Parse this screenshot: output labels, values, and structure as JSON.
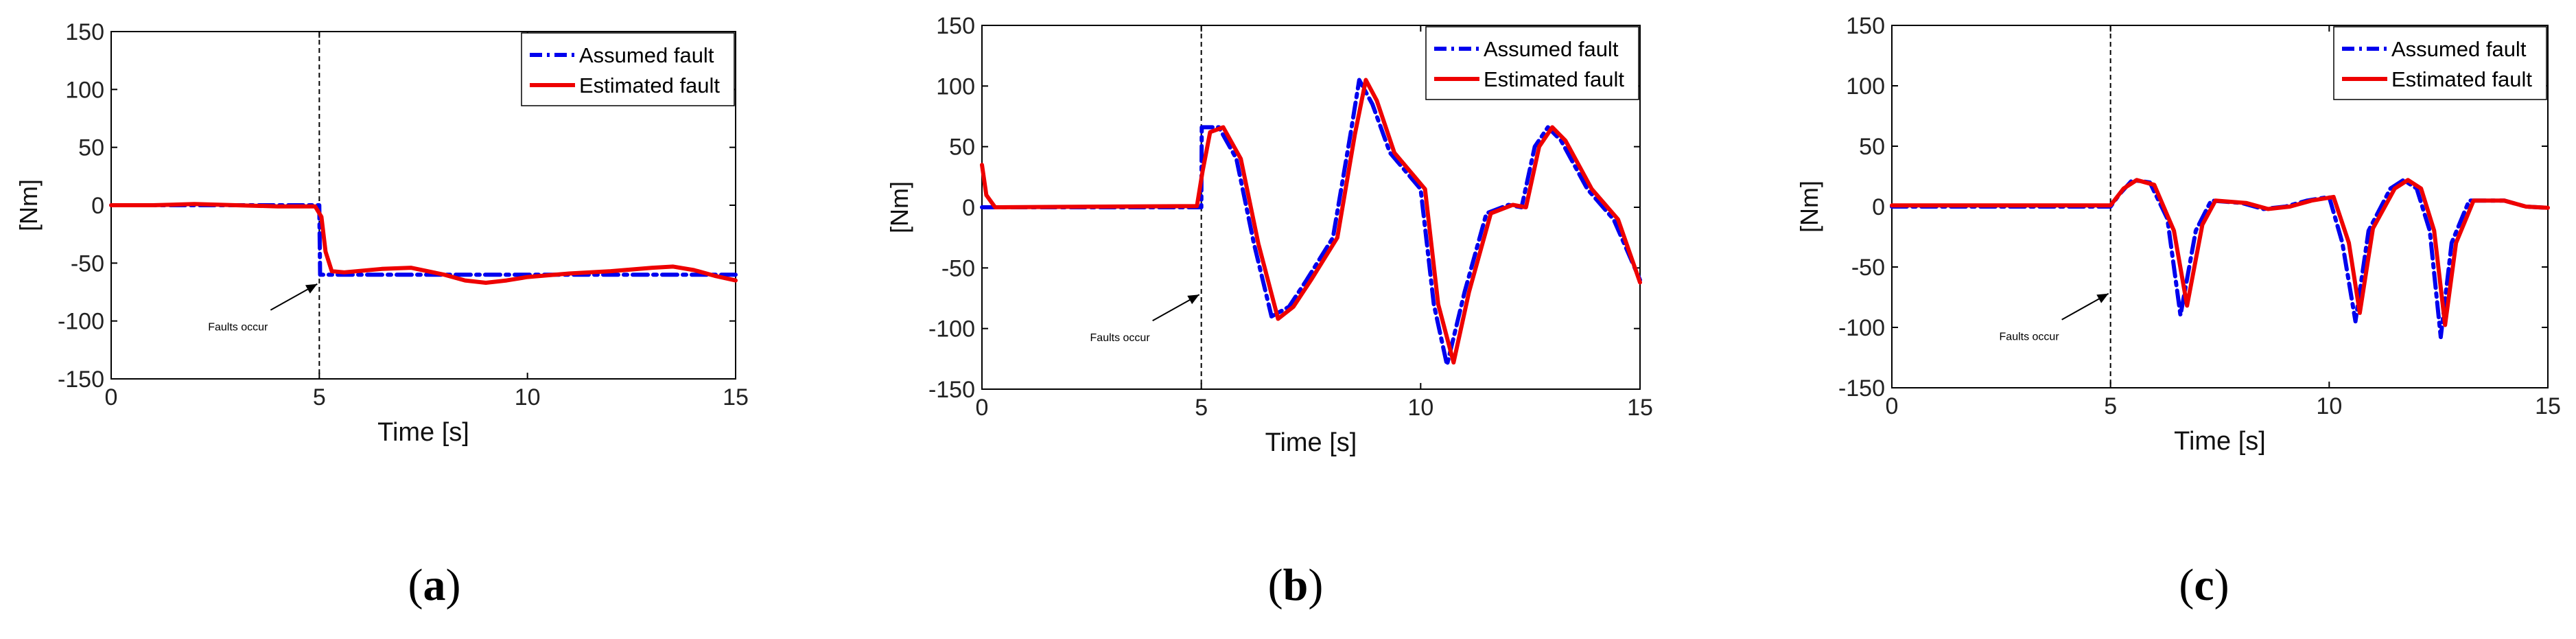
{
  "figure": {
    "panels": [
      {
        "id": "a",
        "caption_open": "(",
        "caption_letter": "a",
        "caption_close": ")",
        "chart_data": {
          "type": "line",
          "title": "",
          "xlabel": "Time [s]",
          "ylabel": "[Nm]",
          "xlim": [
            0,
            15
          ],
          "ylim": [
            -150,
            150
          ],
          "xticks": [
            0,
            5,
            10,
            15
          ],
          "yticks": [
            150,
            100,
            50,
            0,
            -50,
            -100,
            -150
          ],
          "grid": false,
          "legend_position": "top-right",
          "fault_time": 5,
          "annotation": {
            "text": "Faults occur",
            "arrow_to": [
              5,
              -68
            ],
            "text_at": [
              3.2,
              -93
            ]
          },
          "series": [
            {
              "name": "Assumed fault",
              "style": "dash-dot",
              "color": "#0000ee",
              "points": [
                [
                  0,
                  0
                ],
                [
                  5,
                  0
                ],
                [
                  5.02,
                  -60
                ],
                [
                  15,
                  -60
                ]
              ]
            },
            {
              "name": "Estimated fault",
              "style": "solid",
              "color": "#ee0000",
              "points": [
                [
                  0,
                  0
                ],
                [
                  1,
                  0
                ],
                [
                  2,
                  1
                ],
                [
                  3,
                  0
                ],
                [
                  4,
                  -1
                ],
                [
                  4.9,
                  -1
                ],
                [
                  5.05,
                  -10
                ],
                [
                  5.15,
                  -40
                ],
                [
                  5.3,
                  -57
                ],
                [
                  5.6,
                  -58
                ],
                [
                  6.5,
                  -55
                ],
                [
                  7.2,
                  -54
                ],
                [
                  8,
                  -60
                ],
                [
                  8.5,
                  -65
                ],
                [
                  9,
                  -67
                ],
                [
                  9.5,
                  -65
                ],
                [
                  10,
                  -62
                ],
                [
                  11,
                  -59
                ],
                [
                  12,
                  -57
                ],
                [
                  13,
                  -54
                ],
                [
                  13.5,
                  -53
                ],
                [
                  14,
                  -56
                ],
                [
                  14.5,
                  -61
                ],
                [
                  15,
                  -65
                ]
              ]
            }
          ]
        }
      },
      {
        "id": "b",
        "caption_open": "(",
        "caption_letter": "b",
        "caption_close": ")",
        "chart_data": {
          "type": "line",
          "title": "",
          "xlabel": "Time [s]",
          "ylabel": "[Nm]",
          "xlim": [
            0,
            15
          ],
          "ylim": [
            -150,
            150
          ],
          "xticks": [
            0,
            5,
            10,
            15
          ],
          "yticks": [
            150,
            100,
            50,
            0,
            -50,
            -100,
            -150
          ],
          "grid": false,
          "legend_position": "top-right",
          "fault_time": 5,
          "annotation": {
            "text": "Faults occur",
            "arrow_to": [
              5,
              -72
            ],
            "text_at": [
              3.2,
              -95
            ]
          },
          "series": [
            {
              "name": "Assumed fault",
              "style": "dash-dot",
              "color": "#0000ee",
              "points": [
                [
                  0,
                  0
                ],
                [
                  5,
                  0
                ],
                [
                  5.01,
                  66
                ],
                [
                  5.4,
                  66
                ],
                [
                  5.8,
                  40
                ],
                [
                  6.2,
                  -30
                ],
                [
                  6.6,
                  -90
                ],
                [
                  7,
                  -82
                ],
                [
                  7.4,
                  -60
                ],
                [
                  8,
                  -25
                ],
                [
                  8.4,
                  60
                ],
                [
                  8.6,
                  105
                ],
                [
                  8.9,
                  85
                ],
                [
                  9.3,
                  45
                ],
                [
                  10,
                  15
                ],
                [
                  10.3,
                  -80
                ],
                [
                  10.6,
                  -130
                ],
                [
                  11,
                  -70
                ],
                [
                  11.5,
                  -5
                ],
                [
                  12,
                  2
                ],
                [
                  12.3,
                  0
                ],
                [
                  12.6,
                  50
                ],
                [
                  12.9,
                  66
                ],
                [
                  13.2,
                  55
                ],
                [
                  13.8,
                  15
                ],
                [
                  14.4,
                  -10
                ],
                [
                  15,
                  -60
                ]
              ]
            },
            {
              "name": "Estimated fault",
              "style": "solid",
              "color": "#ee0000",
              "points": [
                [
                  0,
                  35
                ],
                [
                  0.1,
                  10
                ],
                [
                  0.3,
                  0
                ],
                [
                  4.9,
                  1
                ],
                [
                  5.03,
                  30
                ],
                [
                  5.2,
                  62
                ],
                [
                  5.5,
                  66
                ],
                [
                  5.9,
                  40
                ],
                [
                  6.3,
                  -30
                ],
                [
                  6.75,
                  -92
                ],
                [
                  7.1,
                  -82
                ],
                [
                  7.5,
                  -60
                ],
                [
                  8.1,
                  -25
                ],
                [
                  8.5,
                  60
                ],
                [
                  8.75,
                  105
                ],
                [
                  9,
                  88
                ],
                [
                  9.4,
                  45
                ],
                [
                  10.1,
                  15
                ],
                [
                  10.4,
                  -80
                ],
                [
                  10.75,
                  -128
                ],
                [
                  11.1,
                  -70
                ],
                [
                  11.6,
                  -5
                ],
                [
                  12.1,
                  2
                ],
                [
                  12.4,
                  0
                ],
                [
                  12.7,
                  50
                ],
                [
                  13,
                  66
                ],
                [
                  13.3,
                  55
                ],
                [
                  13.9,
                  15
                ],
                [
                  14.5,
                  -10
                ],
                [
                  15,
                  -62
                ]
              ]
            }
          ]
        }
      },
      {
        "id": "c",
        "caption_open": "(",
        "caption_letter": "c",
        "caption_close": ")",
        "chart_data": {
          "type": "line",
          "title": "",
          "xlabel": "Time [s]",
          "ylabel": "[Nm]",
          "xlim": [
            0,
            15
          ],
          "ylim": [
            -150,
            150
          ],
          "xticks": [
            0,
            5,
            10,
            15
          ],
          "yticks": [
            150,
            100,
            50,
            0,
            -50,
            -100,
            -150
          ],
          "grid": false,
          "legend_position": "top-right",
          "fault_time": 5,
          "annotation": {
            "text": "Faults occur",
            "arrow_to": [
              5,
              -72
            ],
            "text_at": [
              3.2,
              -95
            ]
          },
          "series": [
            {
              "name": "Assumed fault",
              "style": "dash-dot",
              "color": "#0000ee",
              "points": [
                [
                  0,
                  0
                ],
                [
                  5,
                  0
                ],
                [
                  5.2,
                  10
                ],
                [
                  5.5,
                  22
                ],
                [
                  5.9,
                  20
                ],
                [
                  6.3,
                  -10
                ],
                [
                  6.6,
                  -90
                ],
                [
                  6.95,
                  -20
                ],
                [
                  7.3,
                  5
                ],
                [
                  8,
                  3
                ],
                [
                  8.5,
                  -2
                ],
                [
                  9,
                  0
                ],
                [
                  9.5,
                  5
                ],
                [
                  10,
                  8
                ],
                [
                  10.3,
                  -30
                ],
                [
                  10.6,
                  -95
                ],
                [
                  10.9,
                  -20
                ],
                [
                  11.4,
                  15
                ],
                [
                  11.7,
                  22
                ],
                [
                  12,
                  15
                ],
                [
                  12.3,
                  -20
                ],
                [
                  12.55,
                  -108
                ],
                [
                  12.8,
                  -30
                ],
                [
                  13.2,
                  5
                ],
                [
                  14,
                  5
                ],
                [
                  14.5,
                  0
                ],
                [
                  15,
                  -1
                ]
              ]
            },
            {
              "name": "Estimated fault",
              "style": "solid",
              "color": "#ee0000",
              "points": [
                [
                  0,
                  1
                ],
                [
                  5,
                  1
                ],
                [
                  5.3,
                  15
                ],
                [
                  5.6,
                  22
                ],
                [
                  6,
                  18
                ],
                [
                  6.45,
                  -20
                ],
                [
                  6.75,
                  -82
                ],
                [
                  7.1,
                  -15
                ],
                [
                  7.4,
                  5
                ],
                [
                  8.1,
                  3
                ],
                [
                  8.6,
                  -2
                ],
                [
                  9.1,
                  0
                ],
                [
                  9.6,
                  5
                ],
                [
                  10.1,
                  8
                ],
                [
                  10.45,
                  -30
                ],
                [
                  10.7,
                  -88
                ],
                [
                  11,
                  -18
                ],
                [
                  11.5,
                  15
                ],
                [
                  11.8,
                  22
                ],
                [
                  12.1,
                  15
                ],
                [
                  12.4,
                  -20
                ],
                [
                  12.65,
                  -98
                ],
                [
                  12.9,
                  -30
                ],
                [
                  13.3,
                  5
                ],
                [
                  14,
                  5
                ],
                [
                  14.5,
                  0
                ],
                [
                  15,
                  -1
                ]
              ]
            }
          ]
        }
      }
    ]
  }
}
